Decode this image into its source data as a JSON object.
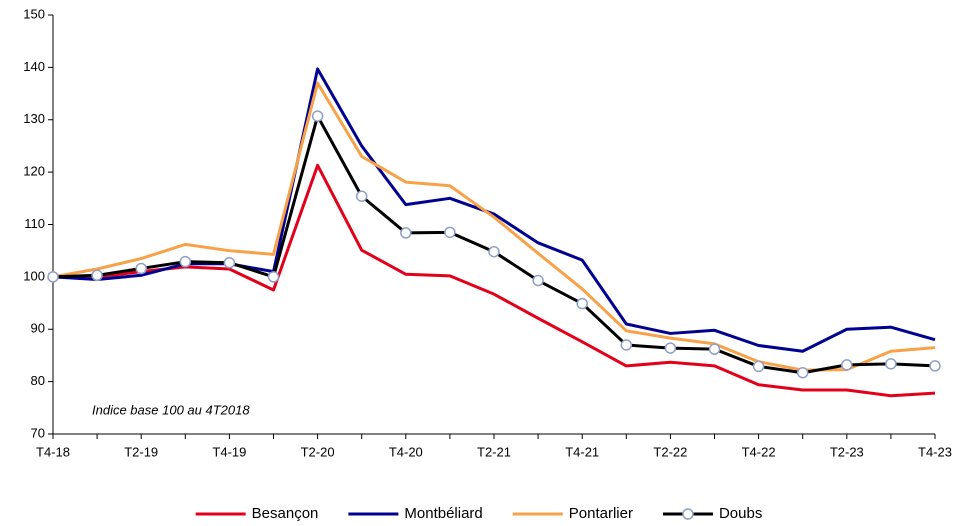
{
  "chart_data": {
    "type": "line",
    "annotation": "Indice base 100 au 4T2018",
    "categories": [
      "T4-18",
      null,
      "T2-19",
      null,
      "T4-19",
      null,
      "T2-20",
      null,
      "T4-20",
      null,
      "T2-21",
      null,
      "T4-21",
      null,
      "T2-22",
      null,
      "T4-22",
      null,
      "T2-23",
      null,
      "T4-23"
    ],
    "series": [
      {
        "name": "Besançon",
        "color": "#e2001a",
        "values": [
          100,
          100,
          101,
          101.9,
          101.5,
          97.5,
          121.3,
          105.1,
          100.5,
          100.2,
          96.7,
          92.1,
          87.6,
          83,
          83.7,
          83,
          79.4,
          78.4,
          78.4,
          77.3,
          77.8
        ]
      },
      {
        "name": "Montbéliard",
        "color": "#000091",
        "values": [
          100,
          99.5,
          100.3,
          102.5,
          102.5,
          101,
          139.7,
          125,
          113.8,
          115,
          112,
          106.5,
          103.2,
          91,
          89.2,
          89.8,
          86.9,
          85.8,
          90,
          90.4,
          88
        ]
      },
      {
        "name": "Pontarlier",
        "color": "#f7a249",
        "values": [
          100,
          101.5,
          103.5,
          106.2,
          105,
          104.3,
          137,
          123,
          118.1,
          117.4,
          111.4,
          104.5,
          97.7,
          89.7,
          88.3,
          87.2,
          83.8,
          82.2,
          82.3,
          85.8,
          86.5
        ]
      },
      {
        "name": "Doubs",
        "color": "#000000",
        "marker": "circle",
        "values": [
          100,
          100.3,
          101.6,
          102.9,
          102.7,
          100,
          130.7,
          115.4,
          108.4,
          108.5,
          104.8,
          99.3,
          94.9,
          87,
          86.4,
          86.2,
          82.9,
          81.7,
          83.2,
          83.4,
          83
        ]
      }
    ],
    "ylim": [
      70,
      150
    ],
    "yticks": [
      70,
      80,
      90,
      100,
      110,
      120,
      130,
      140,
      150
    ],
    "grid": false,
    "legend": "bottom"
  }
}
